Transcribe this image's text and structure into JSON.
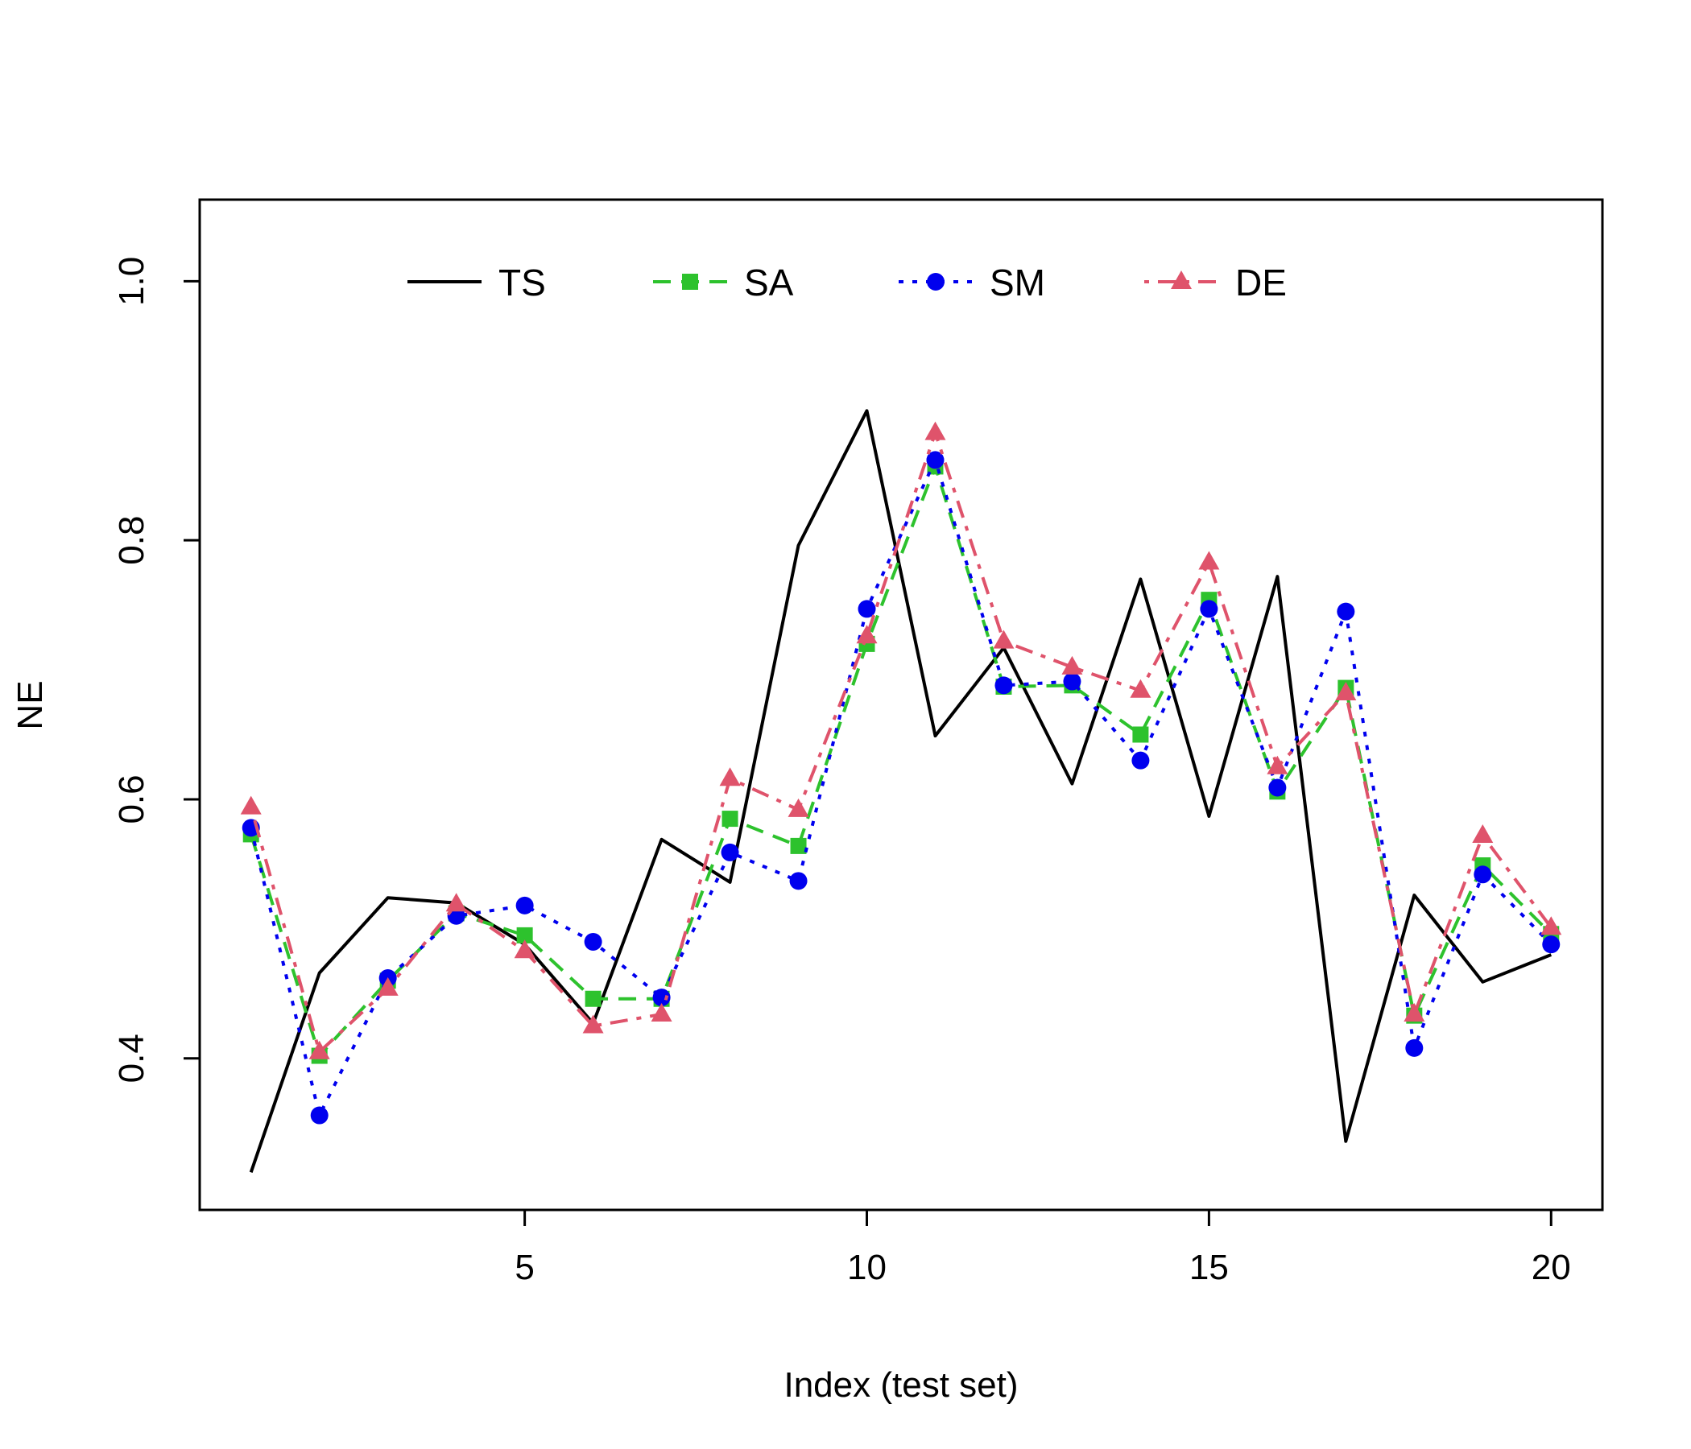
{
  "chart_data": {
    "type": "line",
    "title": "",
    "xlabel": "Index (test set)",
    "ylabel": "NE",
    "xlim": [
      0.25,
      20.75
    ],
    "ylim": [
      0.283,
      1.063
    ],
    "x_ticks": [
      5,
      10,
      15,
      20
    ],
    "y_ticks": [
      0.4,
      0.6,
      0.8,
      1.0
    ],
    "y_tick_labels": [
      "0.4",
      "0.6",
      "0.8",
      "1.0"
    ],
    "x_tick_labels": [
      "5",
      "10",
      "15",
      "20"
    ],
    "legend_position": "top-center",
    "grid": false,
    "x": [
      1,
      2,
      3,
      4,
      5,
      6,
      7,
      8,
      9,
      10,
      11,
      12,
      13,
      14,
      15,
      16,
      17,
      18,
      19,
      20
    ],
    "series": [
      {
        "name": "TS",
        "color": "#000000",
        "line": "solid",
        "marker": "none",
        "values": [
          0.312,
          0.466,
          0.524,
          0.52,
          0.488,
          0.427,
          0.569,
          0.536,
          0.796,
          0.9,
          0.649,
          0.717,
          0.612,
          0.77,
          0.587,
          0.772,
          0.336,
          0.526,
          0.459,
          0.48
        ]
      },
      {
        "name": "SA",
        "color": "#2dc22d",
        "line": "dashed",
        "marker": "square",
        "values": [
          0.573,
          0.402,
          0.46,
          0.512,
          0.495,
          0.446,
          0.446,
          0.585,
          0.564,
          0.72,
          0.857,
          0.687,
          0.688,
          0.65,
          0.754,
          0.606,
          0.686,
          0.433,
          0.549,
          0.496
        ]
      },
      {
        "name": "SM",
        "color": "#0000ee",
        "line": "dotted",
        "marker": "circle",
        "values": [
          0.578,
          0.356,
          0.462,
          0.51,
          0.518,
          0.49,
          0.447,
          0.559,
          0.537,
          0.747,
          0.862,
          0.688,
          0.691,
          0.63,
          0.747,
          0.609,
          0.745,
          0.408,
          0.542,
          0.488
        ]
      },
      {
        "name": "DE",
        "color": "#df536b",
        "line": "dashdot",
        "marker": "triangle",
        "values": [
          0.594,
          0.405,
          0.454,
          0.519,
          0.483,
          0.425,
          0.434,
          0.616,
          0.592,
          0.726,
          0.883,
          0.722,
          0.702,
          0.684,
          0.783,
          0.625,
          0.682,
          0.434,
          0.572,
          0.501
        ]
      }
    ]
  }
}
